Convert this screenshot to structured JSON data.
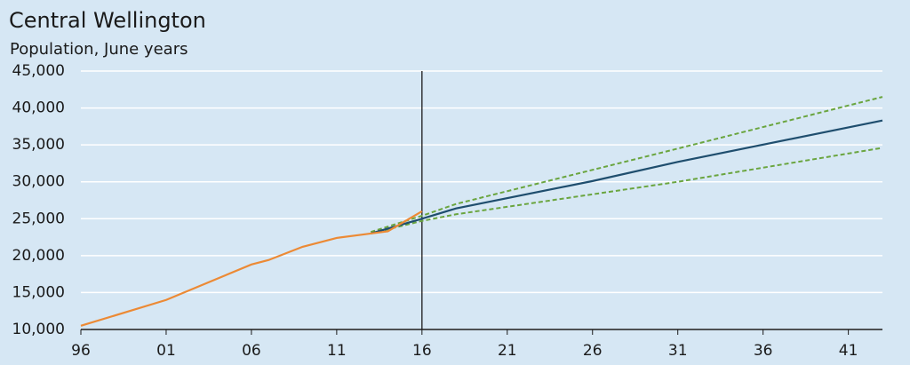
{
  "chart_data": {
    "type": "line",
    "title": "Central Wellington",
    "subtitle": "Population, June years",
    "xlim": [
      1996,
      2043
    ],
    "ylim": [
      10000,
      45000
    ],
    "xticks": [
      {
        "value": 1996,
        "label": "96"
      },
      {
        "value": 2001,
        "label": "01"
      },
      {
        "value": 2006,
        "label": "06"
      },
      {
        "value": 2011,
        "label": "11"
      },
      {
        "value": 2016,
        "label": "16"
      },
      {
        "value": 2021,
        "label": "21"
      },
      {
        "value": 2026,
        "label": "26"
      },
      {
        "value": 2031,
        "label": "31"
      },
      {
        "value": 2036,
        "label": "36"
      },
      {
        "value": 2041,
        "label": "41"
      }
    ],
    "yticks": [
      {
        "value": 10000,
        "label": "10,000"
      },
      {
        "value": 15000,
        "label": "15,000"
      },
      {
        "value": 20000,
        "label": "20,000"
      },
      {
        "value": 25000,
        "label": "25,000"
      },
      {
        "value": 30000,
        "label": "30,000"
      },
      {
        "value": 35000,
        "label": "35,000"
      },
      {
        "value": 40000,
        "label": "40,000"
      },
      {
        "value": 45000,
        "label": "45,000"
      }
    ],
    "grid": true,
    "vline": 2016,
    "series": [
      {
        "color": "#6aa53f",
        "dash": true,
        "x": [
          2013,
          2016,
          2018,
          2031,
          2043
        ],
        "values": [
          23200,
          25400,
          27000,
          34500,
          41500
        ]
      },
      {
        "color": "#6aa53f",
        "dash": true,
        "x": [
          2013,
          2016,
          2018,
          2031,
          2043
        ],
        "values": [
          23000,
          24700,
          25600,
          30000,
          34600
        ]
      },
      {
        "color": "#1f4e6e",
        "dash": false,
        "x": [
          2013,
          2016,
          2018,
          2026,
          2031,
          2043
        ],
        "values": [
          23000,
          25000,
          26400,
          30100,
          32700,
          38300
        ]
      },
      {
        "color": "#ec8a35",
        "dash": false,
        "x": [
          1996,
          2001,
          2006,
          2007,
          2009,
          2011,
          2013,
          2014,
          2016
        ],
        "values": [
          10500,
          14000,
          18800,
          19400,
          21200,
          22400,
          23000,
          23300,
          26000
        ]
      }
    ]
  }
}
